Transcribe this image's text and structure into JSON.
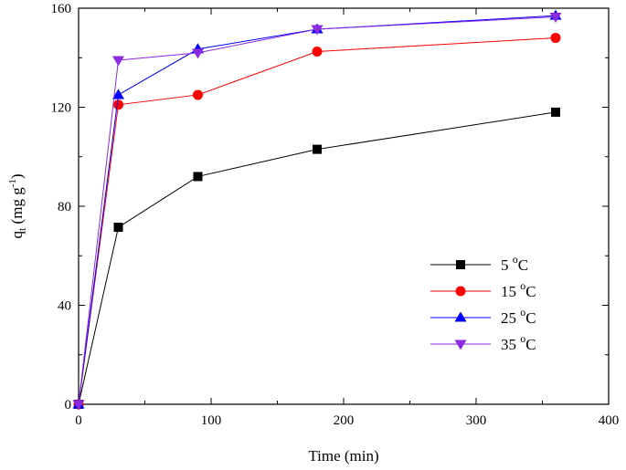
{
  "chart_data": {
    "type": "line",
    "title": "",
    "xlabel": "Time (min)",
    "ylabel": {
      "base": "q",
      "sub": "t",
      "unit_open": " (mg g",
      "unit_sup": "-1",
      "unit_close": ")"
    },
    "xlim": [
      0,
      400
    ],
    "ylim": [
      0,
      160
    ],
    "xticks": [
      0,
      100,
      200,
      300,
      400
    ],
    "yticks": [
      0,
      40,
      80,
      120,
      160
    ],
    "legend_position": "center-right",
    "series": [
      {
        "name": "5 °C",
        "label_num": "5 ",
        "label_deg": "o",
        "label_unit": "C",
        "color": "#000000",
        "marker": "square",
        "x": [
          0,
          30,
          90,
          180,
          360
        ],
        "y": [
          0,
          71.5,
          92,
          103,
          118
        ]
      },
      {
        "name": "15 °C",
        "label_num": "15 ",
        "label_deg": "o",
        "label_unit": "C",
        "color": "#ff0000",
        "marker": "circle",
        "x": [
          0,
          30,
          90,
          180,
          360
        ],
        "y": [
          0,
          121,
          125,
          142.5,
          148
        ]
      },
      {
        "name": "25 °C",
        "label_num": "25 ",
        "label_deg": "o",
        "label_unit": "C",
        "color": "#0000ff",
        "marker": "triangle-up",
        "x": [
          0,
          30,
          90,
          180,
          360
        ],
        "y": [
          0,
          125,
          143.5,
          151.5,
          157
        ]
      },
      {
        "name": "35 °C",
        "label_num": "35 ",
        "label_deg": "o",
        "label_unit": "C",
        "color": "#8a2be2",
        "marker": "triangle-down",
        "x": [
          0,
          30,
          90,
          180,
          360
        ],
        "y": [
          0,
          139,
          142,
          151.5,
          156.5
        ]
      }
    ]
  }
}
